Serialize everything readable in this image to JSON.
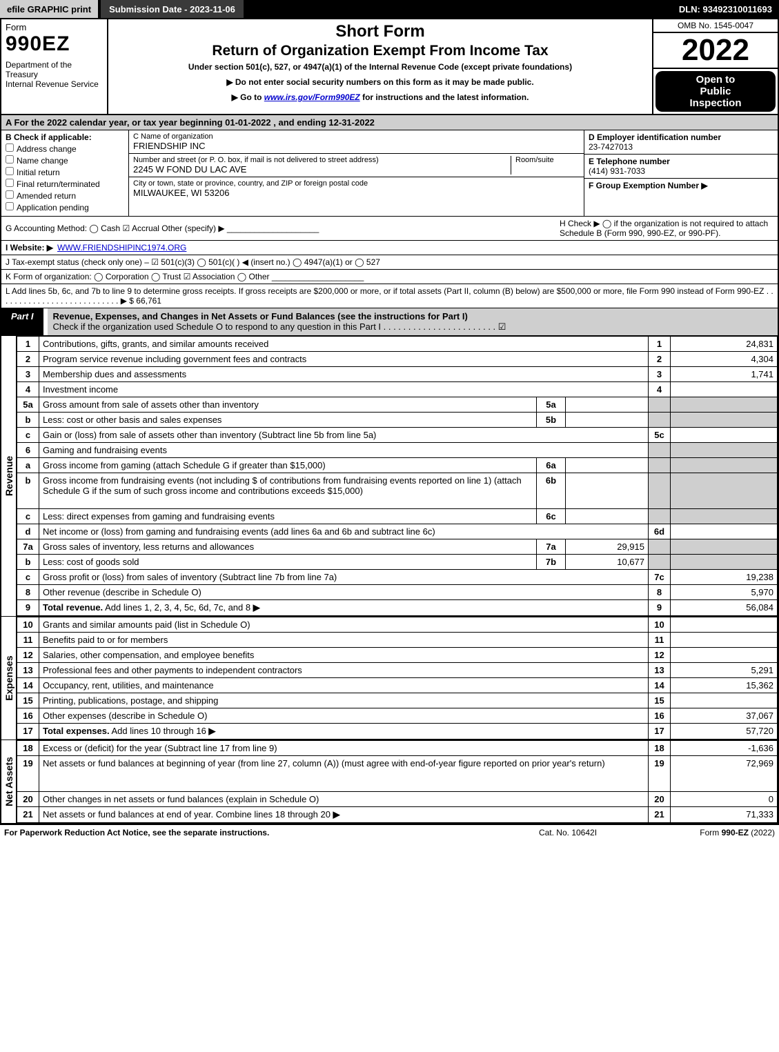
{
  "topbar": {
    "efile": "efile GRAPHIC print",
    "subdate": "Submission Date - 2023-11-06",
    "dln": "DLN: 93492310011693"
  },
  "header": {
    "form_word": "Form",
    "form_num": "990EZ",
    "dept": "Department of the Treasury\nInternal Revenue Service",
    "shortform": "Short Form",
    "title2": "Return of Organization Exempt From Income Tax",
    "subtitle": "Under section 501(c), 527, or 4947(a)(1) of the Internal Revenue Code (except private foundations)",
    "instr1": "▶ Do not enter social security numbers on this form as it may be made public.",
    "instr2_pre": "▶ Go to ",
    "instr2_link": "www.irs.gov/Form990EZ",
    "instr2_post": " for instructions and the latest information.",
    "omb": "OMB No. 1545-0047",
    "year": "2022",
    "pub1": "Open to",
    "pub2": "Public",
    "pub3": "Inspection"
  },
  "rowA": "A  For the 2022 calendar year, or tax year beginning 01-01-2022  , and ending 12-31-2022",
  "B": {
    "hdr": "B  Check if applicable:",
    "items": [
      "Address change",
      "Name change",
      "Initial return",
      "Final return/terminated",
      "Amended return",
      "Application pending"
    ]
  },
  "C": {
    "name_lbl": "C Name of organization",
    "name_val": "FRIENDSHIP INC",
    "addr_lbl": "Number and street (or P. O. box, if mail is not delivered to street address)",
    "room_lbl": "Room/suite",
    "addr_val": "2245 W FOND DU LAC AVE",
    "city_lbl": "City or town, state or province, country, and ZIP or foreign postal code",
    "city_val": "MILWAUKEE, WI  53206"
  },
  "D": {
    "lbl": "D Employer identification number",
    "val": "23-7427013"
  },
  "E": {
    "lbl": "E Telephone number",
    "val": "(414) 931-7033"
  },
  "F": {
    "lbl": "F Group Exemption Number  ▶"
  },
  "G": "G Accounting Method:   ◯ Cash   ☑ Accrual   Other (specify) ▶ ____________________",
  "H": "H   Check ▶  ◯  if the organization is not required to attach Schedule B (Form 990, 990-EZ, or 990-PF).",
  "I_lbl": "I Website: ▶",
  "I_val": "WWW.FRIENDSHIPINC1974.ORG",
  "J": "J Tax-exempt status (check only one) –  ☑ 501(c)(3)  ◯ 501(c)(  ) ◀ (insert no.)  ◯ 4947(a)(1) or  ◯ 527",
  "K": "K Form of organization:   ◯ Corporation   ◯ Trust   ☑ Association   ◯ Other  ____________________",
  "L": "L Add lines 5b, 6c, and 7b to line 9 to determine gross receipts. If gross receipts are $200,000 or more, or if total assets (Part II, column (B) below) are $500,000 or more, file Form 990 instead of Form 990-EZ  . . . . . . . . . . . . . . . . . . . . . . . . . . .  ▶ $ 66,761",
  "partI": {
    "tab": "Part I",
    "title": "Revenue, Expenses, and Changes in Net Assets or Fund Balances (see the instructions for Part I)",
    "check": "Check if the organization used Schedule O to respond to any question in this Part I  . . . . . . . . . . . . . . . . . . . . . . .  ☑"
  },
  "revenue": [
    {
      "n": "1",
      "t": "Contributions, gifts, grants, and similar amounts received",
      "rn": "1",
      "a": "24,831"
    },
    {
      "n": "2",
      "t": "Program service revenue including government fees and contracts",
      "rn": "2",
      "a": "4,304"
    },
    {
      "n": "3",
      "t": "Membership dues and assessments",
      "rn": "3",
      "a": "1,741"
    },
    {
      "n": "4",
      "t": "Investment income",
      "rn": "4",
      "a": ""
    },
    {
      "n": "5a",
      "t": "Gross amount from sale of assets other than inventory",
      "mid": "5a",
      "ma": "",
      "grey": true
    },
    {
      "n": "b",
      "t": "Less: cost or other basis and sales expenses",
      "mid": "5b",
      "ma": "",
      "grey": true
    },
    {
      "n": "c",
      "t": "Gain or (loss) from sale of assets other than inventory (Subtract line 5b from line 5a)",
      "rn": "5c",
      "a": ""
    },
    {
      "n": "6",
      "t": "Gaming and fundraising events",
      "grey": true,
      "noamt": true
    },
    {
      "n": "a",
      "t": "Gross income from gaming (attach Schedule G if greater than $15,000)",
      "mid": "6a",
      "ma": "",
      "grey": true
    },
    {
      "n": "b",
      "t": "Gross income from fundraising events (not including $                  of contributions from fundraising events reported on line 1) (attach Schedule G if the sum of such gross income and contributions exceeds $15,000)",
      "mid": "6b",
      "ma": "",
      "grey": true,
      "tall": true
    },
    {
      "n": "c",
      "t": "Less: direct expenses from gaming and fundraising events",
      "mid": "6c",
      "ma": "",
      "grey": true
    },
    {
      "n": "d",
      "t": "Net income or (loss) from gaming and fundraising events (add lines 6a and 6b and subtract line 6c)",
      "rn": "6d",
      "a": ""
    },
    {
      "n": "7a",
      "t": "Gross sales of inventory, less returns and allowances",
      "mid": "7a",
      "ma": "29,915",
      "grey": true
    },
    {
      "n": "b",
      "t": "Less: cost of goods sold",
      "mid": "7b",
      "ma": "10,677",
      "grey": true
    },
    {
      "n": "c",
      "t": "Gross profit or (loss) from sales of inventory (Subtract line 7b from line 7a)",
      "rn": "7c",
      "a": "19,238"
    },
    {
      "n": "8",
      "t": "Other revenue (describe in Schedule O)",
      "rn": "8",
      "a": "5,970"
    },
    {
      "n": "9",
      "t": "Total revenue. Add lines 1, 2, 3, 4, 5c, 6d, 7c, and 8",
      "rn": "9",
      "a": "56,084",
      "bold": true,
      "arrow": true
    }
  ],
  "expenses": [
    {
      "n": "10",
      "t": "Grants and similar amounts paid (list in Schedule O)",
      "rn": "10",
      "a": ""
    },
    {
      "n": "11",
      "t": "Benefits paid to or for members",
      "rn": "11",
      "a": ""
    },
    {
      "n": "12",
      "t": "Salaries, other compensation, and employee benefits",
      "rn": "12",
      "a": ""
    },
    {
      "n": "13",
      "t": "Professional fees and other payments to independent contractors",
      "rn": "13",
      "a": "5,291"
    },
    {
      "n": "14",
      "t": "Occupancy, rent, utilities, and maintenance",
      "rn": "14",
      "a": "15,362"
    },
    {
      "n": "15",
      "t": "Printing, publications, postage, and shipping",
      "rn": "15",
      "a": ""
    },
    {
      "n": "16",
      "t": "Other expenses (describe in Schedule O)",
      "rn": "16",
      "a": "37,067"
    },
    {
      "n": "17",
      "t": "Total expenses. Add lines 10 through 16",
      "rn": "17",
      "a": "57,720",
      "bold": true,
      "arrow": true
    }
  ],
  "netassets": [
    {
      "n": "18",
      "t": "Excess or (deficit) for the year (Subtract line 17 from line 9)",
      "rn": "18",
      "a": "-1,636"
    },
    {
      "n": "19",
      "t": "Net assets or fund balances at beginning of year (from line 27, column (A)) (must agree with end-of-year figure reported on prior year's return)",
      "rn": "19",
      "a": "72,969",
      "tall": true
    },
    {
      "n": "20",
      "t": "Other changes in net assets or fund balances (explain in Schedule O)",
      "rn": "20",
      "a": "0"
    },
    {
      "n": "21",
      "t": "Net assets or fund balances at end of year. Combine lines 18 through 20",
      "rn": "21",
      "a": "71,333",
      "arrow": true
    }
  ],
  "vlabels": {
    "rev": "Revenue",
    "exp": "Expenses",
    "na": "Net Assets"
  },
  "footer": {
    "f1": "For Paperwork Reduction Act Notice, see the separate instructions.",
    "f2": "Cat. No. 10642I",
    "f3": "Form 990-EZ (2022)"
  },
  "colors": {
    "grey": "#cfcfcf",
    "black": "#000000",
    "link": "#0000cc"
  }
}
